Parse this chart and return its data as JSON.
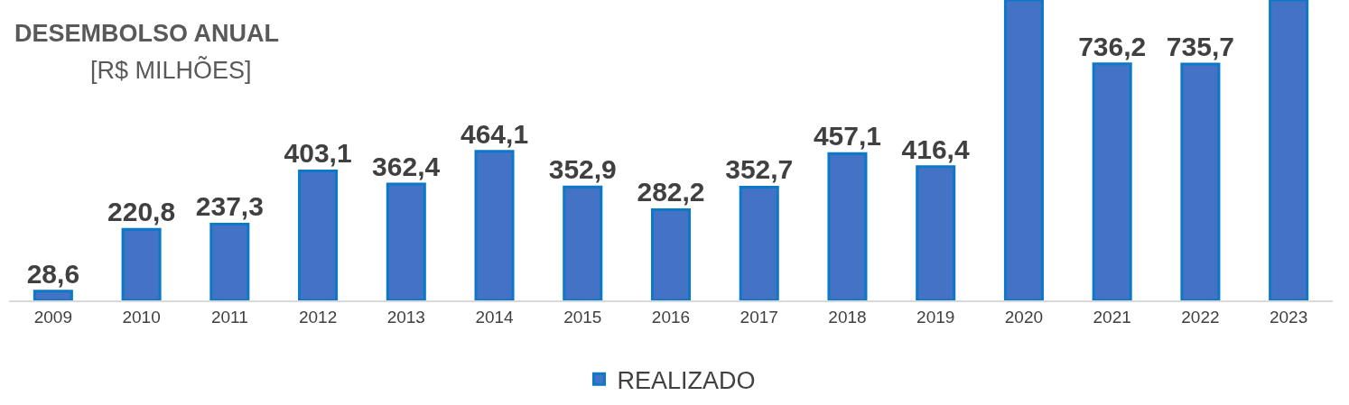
{
  "chart_data": {
    "type": "bar",
    "title": "DESEMBOLSO ANUAL",
    "subtitle": "[R$ MILHÕES]",
    "categories": [
      "2009",
      "2010",
      "2011",
      "2012",
      "2013",
      "2014",
      "2015",
      "2016",
      "2017",
      "2018",
      "2019",
      "2020",
      "2021",
      "2022",
      "2023"
    ],
    "series": [
      {
        "name": "REALIZADO",
        "color": "#4472c4",
        "values": [
          28.6,
          220.8,
          237.3,
          403.1,
          362.4,
          464.1,
          352.9,
          282.2,
          352.7,
          457.1,
          416.4,
          935,
          736.2,
          735.7,
          935
        ],
        "value_labels": [
          "28,6",
          "220,8",
          "237,3",
          "403,1",
          "362,4",
          "464,1",
          "352,9",
          "282,2",
          "352,7",
          "457,1",
          "416,4",
          null,
          "736,2",
          "735,7",
          null
        ]
      }
    ],
    "ylim": [
      0,
      935
    ],
    "tick_labels": "x",
    "grid": false,
    "legend": "bottom"
  }
}
